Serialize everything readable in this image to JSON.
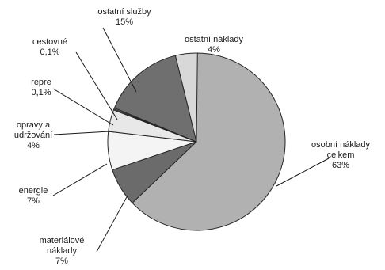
{
  "chart_data": {
    "type": "pie",
    "start": "top",
    "direction": "clockwise",
    "slices": [
      {
        "name": "osobní náklady celkem",
        "lines": [
          "osobní náklady",
          "celkem"
        ],
        "value_label": "63%",
        "value": 63,
        "color": "#b1b1b1"
      },
      {
        "name": "materiálové náklady",
        "lines": [
          "materiálové",
          "náklady"
        ],
        "value_label": "7%",
        "value": 7,
        "color": "#6b6b6b"
      },
      {
        "name": "energie",
        "lines": [
          "energie"
        ],
        "value_label": "7%",
        "value": 7,
        "color": "#f4f4f4"
      },
      {
        "name": "opravy a udržování",
        "lines": [
          "opravy a",
          "udržování"
        ],
        "value_label": "4%",
        "value": 4,
        "color": "#e8e8e8"
      },
      {
        "name": "repre",
        "lines": [
          "repre"
        ],
        "value_label": "0,1%",
        "value": 0.1,
        "color": "#9a9a9a"
      },
      {
        "name": "cestovné",
        "lines": [
          "cestovné"
        ],
        "value_label": "0,1%",
        "value": 0.1,
        "color": "#c8c8c8"
      },
      {
        "name": "ostatní služby",
        "lines": [
          "ostatní služby"
        ],
        "value_label": "15%",
        "value": 15,
        "color": "#6f6f6f"
      },
      {
        "name": "ostatní náklady",
        "lines": [
          "ostatní náklady"
        ],
        "value_label": "4%",
        "value": 4,
        "color": "#d8d8d8"
      }
    ]
  }
}
